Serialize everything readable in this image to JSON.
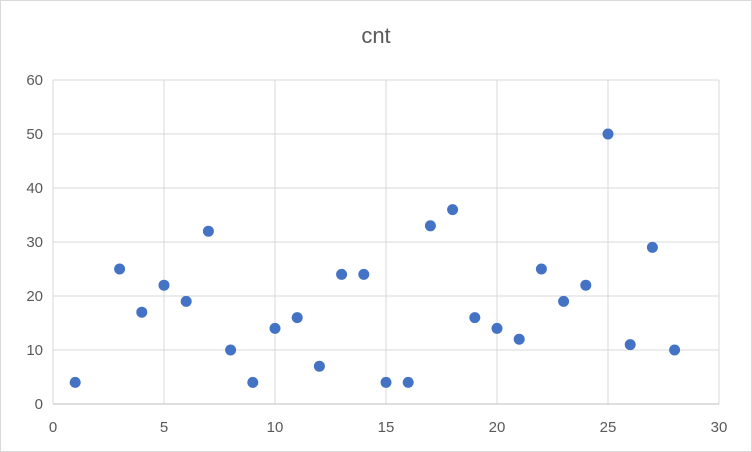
{
  "chart_data": {
    "type": "scatter",
    "title": "cnt",
    "xlabel": "",
    "ylabel": "",
    "xlim": [
      0,
      30
    ],
    "ylim": [
      0,
      60
    ],
    "x_ticks": [
      0,
      5,
      10,
      15,
      20,
      25,
      30
    ],
    "y_ticks": [
      0,
      10,
      20,
      30,
      40,
      50,
      60
    ],
    "grid": true,
    "legend": "none",
    "marker_color": "#4472c4",
    "points": [
      {
        "x": 1,
        "y": 4
      },
      {
        "x": 3,
        "y": 25
      },
      {
        "x": 4,
        "y": 17
      },
      {
        "x": 5,
        "y": 22
      },
      {
        "x": 6,
        "y": 19
      },
      {
        "x": 7,
        "y": 32
      },
      {
        "x": 8,
        "y": 10
      },
      {
        "x": 9,
        "y": 4
      },
      {
        "x": 10,
        "y": 14
      },
      {
        "x": 11,
        "y": 16
      },
      {
        "x": 12,
        "y": 7
      },
      {
        "x": 13,
        "y": 24
      },
      {
        "x": 14,
        "y": 24
      },
      {
        "x": 15,
        "y": 4
      },
      {
        "x": 16,
        "y": 4
      },
      {
        "x": 17,
        "y": 33
      },
      {
        "x": 18,
        "y": 36
      },
      {
        "x": 19,
        "y": 16
      },
      {
        "x": 20,
        "y": 14
      },
      {
        "x": 21,
        "y": 12
      },
      {
        "x": 22,
        "y": 25
      },
      {
        "x": 23,
        "y": 19
      },
      {
        "x": 24,
        "y": 22
      },
      {
        "x": 25,
        "y": 50
      },
      {
        "x": 26,
        "y": 11
      },
      {
        "x": 27,
        "y": 29
      },
      {
        "x": 28,
        "y": 10
      }
    ]
  }
}
